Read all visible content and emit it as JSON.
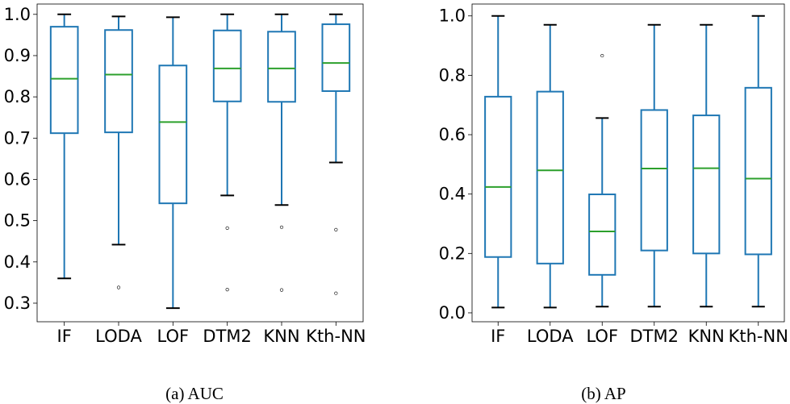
{
  "colors": {
    "box": "#1f77b4",
    "whisker": "#1f77b4",
    "cap": "#000000",
    "median": "#2ca02c",
    "flier": "#000000",
    "axis": "#000000"
  },
  "chart_data": [
    {
      "type": "box",
      "caption": "(a) AUC",
      "categories": [
        "IF",
        "LODA",
        "LOF",
        "DTM2",
        "KNN",
        "Kth-NN"
      ],
      "ylim": [
        0.255,
        1.025
      ],
      "yticks": [
        0.3,
        0.4,
        0.5,
        0.6,
        0.7,
        0.8,
        0.9,
        1.0
      ],
      "ytick_labels": [
        "0.3",
        "0.4",
        "0.5",
        "0.6",
        "0.7",
        "0.8",
        "0.9",
        "1.0"
      ],
      "grid": false,
      "boxes": [
        {
          "label": "IF",
          "whislo": 0.36,
          "q1": 0.712,
          "med": 0.844,
          "q3": 0.97,
          "whishi": 1.0,
          "fliers": []
        },
        {
          "label": "LODA",
          "whislo": 0.442,
          "q1": 0.714,
          "med": 0.854,
          "q3": 0.962,
          "whishi": 0.995,
          "fliers": [
            0.338
          ]
        },
        {
          "label": "LOF",
          "whislo": 0.288,
          "q1": 0.542,
          "med": 0.739,
          "q3": 0.876,
          "whishi": 0.993,
          "fliers": []
        },
        {
          "label": "DTM2",
          "whislo": 0.561,
          "q1": 0.789,
          "med": 0.869,
          "q3": 0.961,
          "whishi": 1.0,
          "fliers": [
            0.482,
            0.333
          ]
        },
        {
          "label": "KNN",
          "whislo": 0.538,
          "q1": 0.788,
          "med": 0.869,
          "q3": 0.958,
          "whishi": 1.0,
          "fliers": [
            0.484,
            0.332
          ]
        },
        {
          "label": "Kth-NN",
          "whislo": 0.641,
          "q1": 0.814,
          "med": 0.882,
          "q3": 0.976,
          "whishi": 1.0,
          "fliers": [
            0.478,
            0.324
          ]
        }
      ]
    },
    {
      "type": "box",
      "caption": "(b) AP",
      "categories": [
        "IF",
        "LODA",
        "LOF",
        "DTM2",
        "KNN",
        "Kth-NN"
      ],
      "ylim": [
        -0.03,
        1.04
      ],
      "yticks": [
        0.0,
        0.2,
        0.4,
        0.6,
        0.8,
        1.0
      ],
      "ytick_labels": [
        "0.0",
        "0.2",
        "0.4",
        "0.6",
        "0.8",
        "1.0"
      ],
      "grid": false,
      "boxes": [
        {
          "label": "IF",
          "whislo": 0.018,
          "q1": 0.188,
          "med": 0.424,
          "q3": 0.728,
          "whishi": 1.0,
          "fliers": []
        },
        {
          "label": "LODA",
          "whislo": 0.018,
          "q1": 0.166,
          "med": 0.48,
          "q3": 0.745,
          "whishi": 0.97,
          "fliers": []
        },
        {
          "label": "LOF",
          "whislo": 0.021,
          "q1": 0.128,
          "med": 0.274,
          "q3": 0.399,
          "whishi": 0.656,
          "fliers": [
            0.866
          ]
        },
        {
          "label": "DTM2",
          "whislo": 0.021,
          "q1": 0.21,
          "med": 0.486,
          "q3": 0.683,
          "whishi": 0.97,
          "fliers": []
        },
        {
          "label": "KNN",
          "whislo": 0.021,
          "q1": 0.2,
          "med": 0.487,
          "q3": 0.665,
          "whishi": 0.97,
          "fliers": []
        },
        {
          "label": "Kth-NN",
          "whislo": 0.021,
          "q1": 0.197,
          "med": 0.452,
          "q3": 0.758,
          "whishi": 1.0,
          "fliers": []
        }
      ]
    }
  ]
}
